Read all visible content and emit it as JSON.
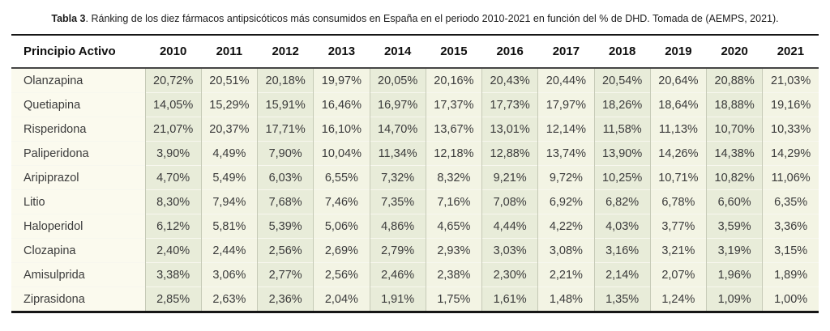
{
  "caption": {
    "label": "Tabla 3",
    "text": ". Ránking de los diez fármacos antipsicóticos más consumidos en España en el periodo 2010-2021 en función del % de DHD. Tomada de (AEMPS, 2021)."
  },
  "table": {
    "header": {
      "principio_activo": "Principio Activo",
      "years": [
        "2010",
        "2011",
        "2012",
        "2013",
        "2014",
        "2015",
        "2016",
        "2017",
        "2018",
        "2019",
        "2020",
        "2021"
      ]
    },
    "rows": [
      {
        "name": "Olanzapina",
        "values": [
          "20,72%",
          "20,51%",
          "20,18%",
          "19,97%",
          "20,05%",
          "20,16%",
          "20,43%",
          "20,44%",
          "20,54%",
          "20,64%",
          "20,88%",
          "21,03%"
        ]
      },
      {
        "name": "Quetiapina",
        "values": [
          "14,05%",
          "15,29%",
          "15,91%",
          "16,46%",
          "16,97%",
          "17,37%",
          "17,73%",
          "17,97%",
          "18,26%",
          "18,64%",
          "18,88%",
          "19,16%"
        ]
      },
      {
        "name": "Risperidona",
        "values": [
          "21,07%",
          "20,37%",
          "17,71%",
          "16,10%",
          "14,70%",
          "13,67%",
          "13,01%",
          "12,14%",
          "11,58%",
          "11,13%",
          "10,70%",
          "10,33%"
        ]
      },
      {
        "name": "Paliperidona",
        "values": [
          "3,90%",
          "4,49%",
          "7,90%",
          "10,04%",
          "11,34%",
          "12,18%",
          "12,88%",
          "13,74%",
          "13,90%",
          "14,26%",
          "14,38%",
          "14,29%"
        ]
      },
      {
        "name": "Aripiprazol",
        "values": [
          "4,70%",
          "5,49%",
          "6,03%",
          "6,55%",
          "7,32%",
          "8,32%",
          "9,21%",
          "9,72%",
          "10,25%",
          "10,71%",
          "10,82%",
          "11,06%"
        ]
      },
      {
        "name": "Litio",
        "values": [
          "8,30%",
          "7,94%",
          "7,68%",
          "7,46%",
          "7,35%",
          "7,16%",
          "7,08%",
          "6,92%",
          "6,82%",
          "6,78%",
          "6,60%",
          "6,35%"
        ]
      },
      {
        "name": "Haloperidol",
        "values": [
          "6,12%",
          "5,81%",
          "5,39%",
          "5,06%",
          "4,86%",
          "4,65%",
          "4,44%",
          "4,22%",
          "4,03%",
          "3,77%",
          "3,59%",
          "3,36%"
        ]
      },
      {
        "name": "Clozapina",
        "values": [
          "2,40%",
          "2,44%",
          "2,56%",
          "2,69%",
          "2,79%",
          "2,93%",
          "3,03%",
          "3,08%",
          "3,16%",
          "3,21%",
          "3,19%",
          "3,15%"
        ]
      },
      {
        "name": "Amisulprida",
        "values": [
          "3,38%",
          "3,06%",
          "2,77%",
          "2,56%",
          "2,46%",
          "2,38%",
          "2,30%",
          "2,21%",
          "2,14%",
          "2,07%",
          "1,96%",
          "1,89%"
        ]
      },
      {
        "name": "Ziprasidona",
        "values": [
          "2,85%",
          "2,63%",
          "2,36%",
          "2,04%",
          "1,91%",
          "1,75%",
          "1,61%",
          "1,48%",
          "1,35%",
          "1,24%",
          "1,09%",
          "1,00%"
        ]
      }
    ]
  },
  "colors": {
    "page_background": "#ffffff",
    "label_column_background": "#fbfaee",
    "even_year_column_background": "#e8ecd9",
    "odd_year_column_background": "#f3f4e4",
    "column_separator": "#c6cab7",
    "row_separator": "#f7f7ee",
    "table_outer_border": "#161616",
    "header_underline": "#454545",
    "text": "#3b3b3b"
  }
}
